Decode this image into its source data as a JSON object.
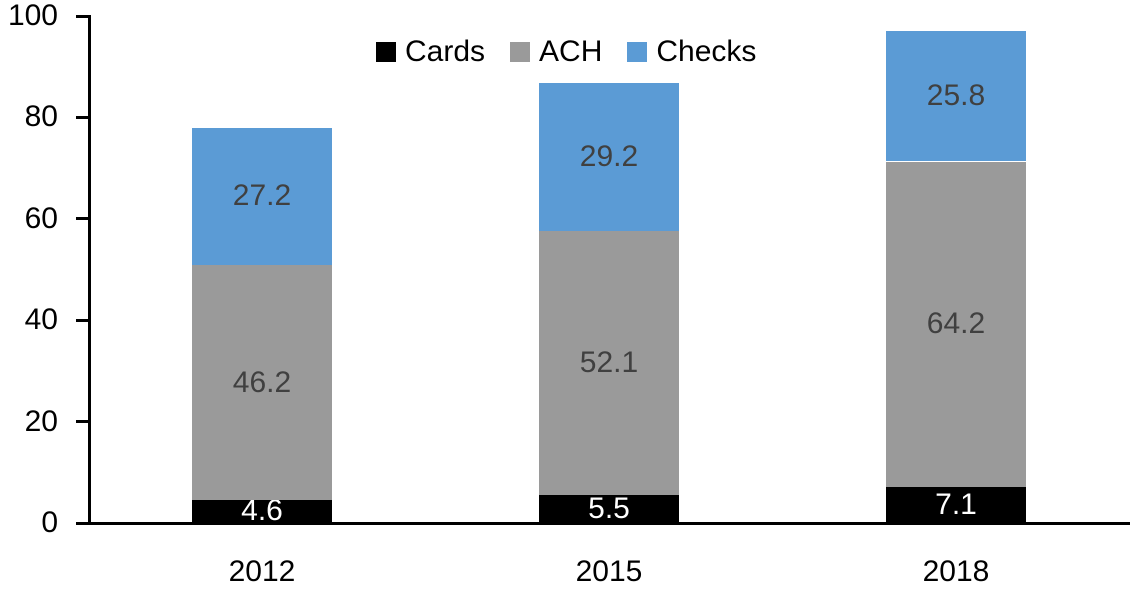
{
  "chart_data": {
    "type": "bar",
    "stacked": true,
    "categories": [
      "2012",
      "2015",
      "2018"
    ],
    "series": [
      {
        "name": "Cards",
        "color": "#000000",
        "label_color": "#FFFFFF",
        "values": [
          4.6,
          5.5,
          7.1
        ]
      },
      {
        "name": "ACH",
        "color": "#9A9A9A",
        "label_color": "#404040",
        "values": [
          46.2,
          52.1,
          64.2
        ]
      },
      {
        "name": "Checks",
        "color": "#5B9BD5",
        "label_color": "#404040",
        "values": [
          27.2,
          29.2,
          25.8
        ]
      }
    ],
    "totals": [
      78.0,
      86.8,
      97.1
    ],
    "xlabel": "",
    "ylabel": "",
    "title": "",
    "ylim": [
      0,
      100
    ],
    "yticks": [
      0,
      20,
      40,
      60,
      80,
      100
    ],
    "grid": false,
    "legend_position": "top",
    "axis_color": "#000000",
    "background": "#FFFFFF",
    "value_label_decimals": 1
  }
}
